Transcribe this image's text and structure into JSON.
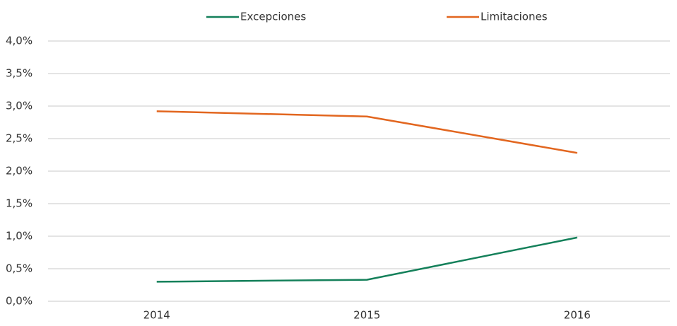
{
  "chart_data": {
    "type": "line",
    "categories": [
      "2014",
      "2015",
      "2016"
    ],
    "series": [
      {
        "name": "Excepciones",
        "color": "#14805a",
        "values": [
          0.3,
          0.33,
          0.98
        ]
      },
      {
        "name": "Limitaciones",
        "color": "#e2661f",
        "values": [
          2.92,
          2.84,
          2.28
        ]
      }
    ],
    "ylim": [
      0,
      4
    ],
    "yticks": [
      {
        "value": 0,
        "label": "0,0%"
      },
      {
        "value": 0.5,
        "label": "0,5%"
      },
      {
        "value": 1,
        "label": "1,0%"
      },
      {
        "value": 1.5,
        "label": "1,5%"
      },
      {
        "value": 2,
        "label": "2,0%"
      },
      {
        "value": 2.5,
        "label": "2,5%"
      },
      {
        "value": 3,
        "label": "3,0%"
      },
      {
        "value": 3.5,
        "label": "3,5%"
      },
      {
        "value": 4,
        "label": "4,0%"
      }
    ],
    "grid": true,
    "legend": "top"
  }
}
